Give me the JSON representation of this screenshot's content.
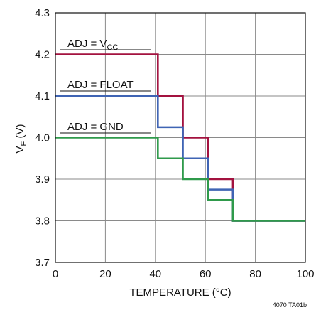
{
  "chart_data": {
    "type": "line",
    "title": "",
    "xlabel": "TEMPERATURE (°C)",
    "ylabel": {
      "main": "V",
      "sub": "F",
      "tail": " (V)"
    },
    "xlim": [
      0,
      100
    ],
    "ylim": [
      3.7,
      4.3
    ],
    "x_ticks": [
      "0",
      "20",
      "40",
      "60",
      "80",
      "100"
    ],
    "y_ticks": [
      "4.3",
      "4.2",
      "4.1",
      "4.0",
      "3.9",
      "3.8",
      "3.7"
    ],
    "grid": true,
    "legend": "none",
    "figure_code": "4070 TA01b",
    "series": [
      {
        "name": {
          "main": "ADJ = V",
          "sub": "CC"
        },
        "color": "#a3123f",
        "x": [
          0,
          41,
          41,
          51,
          51,
          61,
          61,
          71,
          71,
          100
        ],
        "y": [
          4.2,
          4.2,
          4.1,
          4.1,
          4.0,
          4.0,
          3.9,
          3.9,
          3.8,
          3.8
        ]
      },
      {
        "name": {
          "main": "ADJ = FLOAT"
        },
        "color": "#3f64b4",
        "x": [
          0,
          41,
          41,
          51,
          51,
          61,
          61,
          71,
          71,
          100
        ],
        "y": [
          4.1,
          4.1,
          4.025,
          4.025,
          3.95,
          3.95,
          3.875,
          3.875,
          3.8,
          3.8
        ]
      },
      {
        "name": {
          "main": "ADJ = GND"
        },
        "color": "#2f9a4b",
        "x": [
          0,
          41,
          41,
          51,
          51,
          61,
          61,
          71,
          71,
          100
        ],
        "y": [
          4.0,
          4.0,
          3.95,
          3.95,
          3.9,
          3.9,
          3.85,
          3.85,
          3.8,
          3.8
        ]
      }
    ]
  }
}
